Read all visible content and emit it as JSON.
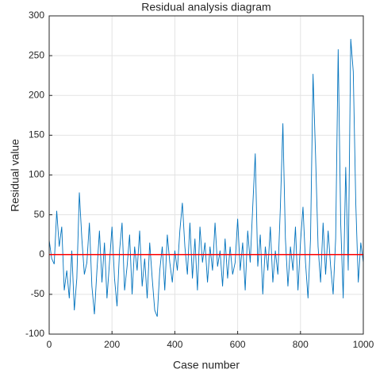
{
  "chart_data": {
    "type": "line",
    "title": "Residual analysis diagram",
    "x_label": "Case number",
    "y_label": "Residual value",
    "x": [
      0,
      8,
      16,
      24,
      32,
      40,
      48,
      56,
      64,
      72,
      80,
      88,
      96,
      104,
      112,
      120,
      128,
      136,
      144,
      152,
      160,
      168,
      176,
      184,
      192,
      200,
      208,
      216,
      224,
      232,
      240,
      248,
      256,
      264,
      272,
      280,
      288,
      296,
      304,
      312,
      320,
      328,
      336,
      344,
      352,
      360,
      368,
      376,
      384,
      392,
      400,
      408,
      416,
      424,
      432,
      440,
      448,
      456,
      464,
      472,
      480,
      488,
      496,
      504,
      512,
      520,
      528,
      536,
      544,
      552,
      560,
      568,
      576,
      584,
      592,
      600,
      608,
      616,
      624,
      632,
      640,
      648,
      656,
      664,
      672,
      680,
      688,
      696,
      704,
      712,
      720,
      728,
      736,
      744,
      752,
      760,
      768,
      776,
      784,
      792,
      800,
      808,
      816,
      824,
      832,
      840,
      848,
      856,
      864,
      872,
      880,
      888,
      896,
      904,
      912,
      920,
      928,
      936,
      944,
      952,
      960,
      968,
      976,
      984,
      992,
      1000
    ],
    "series": [
      {
        "color": "#0072bd",
        "values": [
          18,
          -5,
          -12,
          55,
          10,
          35,
          -45,
          -20,
          -55,
          5,
          -70,
          -30,
          78,
          20,
          -25,
          -10,
          40,
          -40,
          -75,
          -20,
          30,
          -35,
          15,
          -55,
          -10,
          35,
          -30,
          -65,
          5,
          40,
          -45,
          -15,
          25,
          -50,
          10,
          -20,
          30,
          -40,
          -5,
          -55,
          15,
          -30,
          -70,
          -78,
          -20,
          10,
          -45,
          25,
          -10,
          -35,
          5,
          -20,
          30,
          65,
          10,
          -25,
          40,
          -30,
          20,
          -45,
          35,
          -10,
          15,
          -35,
          10,
          -20,
          40,
          -15,
          5,
          -40,
          20,
          -30,
          10,
          -25,
          -10,
          45,
          -20,
          15,
          -45,
          30,
          -10,
          60,
          127,
          -15,
          25,
          -50,
          10,
          -20,
          35,
          -35,
          5,
          -25,
          60,
          165,
          20,
          -40,
          10,
          -20,
          35,
          -45,
          15,
          60,
          -10,
          -55,
          20,
          227,
          125,
          10,
          -35,
          40,
          -25,
          30,
          -15,
          -50,
          20,
          258,
          40,
          -55,
          110,
          -20,
          271,
          230,
          65,
          -35,
          15,
          -10
        ]
      },
      {
        "color": "#ff0000",
        "x": [
          0,
          1000
        ],
        "values": [
          0,
          0
        ]
      }
    ],
    "xlim": [
      0,
      1000
    ],
    "xticks": [
      0,
      200,
      400,
      600,
      800,
      1000
    ],
    "ylim": [
      -100,
      300
    ],
    "yticks": [
      -100,
      -50,
      0,
      50,
      100,
      150,
      200,
      250,
      300
    ],
    "grid": true
  }
}
